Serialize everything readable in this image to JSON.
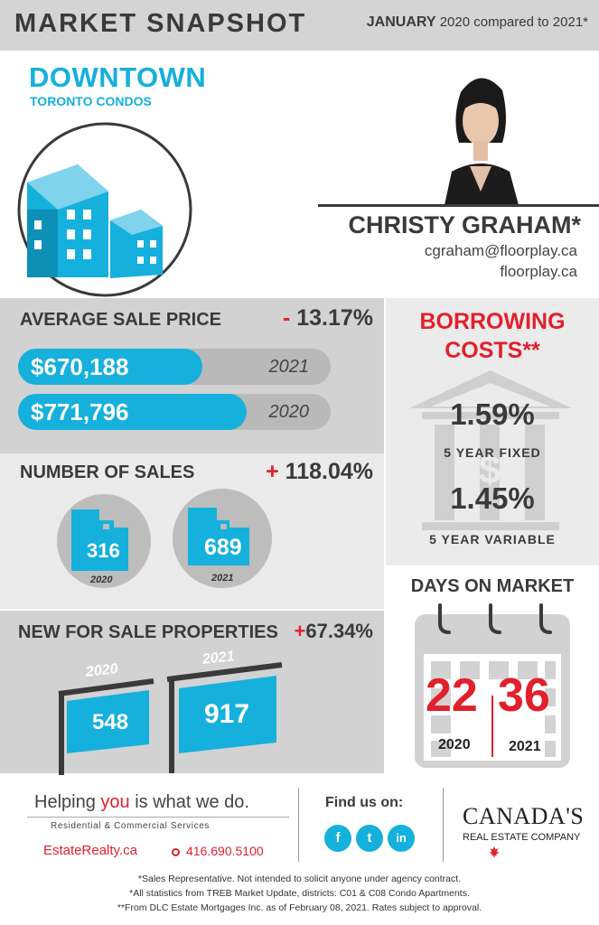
{
  "header": {
    "title": "MARKET SNAPSHOT",
    "month": "JANUARY",
    "comparison": "2020 compared to 2021*"
  },
  "location": {
    "city": "DOWNTOWN",
    "subtitle": "TORONTO CONDOS",
    "icon": "building-icon"
  },
  "agent": {
    "name": "CHRISTY GRAHAM*",
    "email": "cgraham@floorplay.ca",
    "website": "floorplay.ca"
  },
  "avg_sale_price": {
    "title": "AVERAGE SALE PRICE",
    "change_sign": "-",
    "change_value": "13.17%",
    "rows": [
      {
        "value": "$670,188",
        "year": "2021",
        "fill": 0.59
      },
      {
        "value": "$771,796",
        "year": "2020",
        "fill": 0.73
      }
    ]
  },
  "number_of_sales": {
    "title": "NUMBER OF SALES",
    "change_sign": "+",
    "change_value": "118.04%",
    "items": [
      {
        "value": "316",
        "year": "2020"
      },
      {
        "value": "689",
        "year": "2021"
      }
    ]
  },
  "new_for_sale": {
    "title": "NEW FOR SALE PROPERTIES",
    "change_sign": "+",
    "change_value": "67.34%",
    "items": [
      {
        "value": "548",
        "year": "2020"
      },
      {
        "value": "917",
        "year": "2021"
      }
    ]
  },
  "borrowing": {
    "title_line1": "BORROWING",
    "title_line2": "COSTS**",
    "rate_fixed": "1.59%",
    "label_fixed": "5 YEAR FIXED",
    "rate_variable": "1.45%",
    "label_variable": "5 YEAR VARIABLE",
    "icon": "bank-icon"
  },
  "days_on_market": {
    "title": "DAYS ON MARKET",
    "items": [
      {
        "value": "22",
        "year": "2020"
      },
      {
        "value": "36",
        "year": "2021"
      }
    ],
    "icon": "calendar-icon"
  },
  "footer": {
    "slogan_pre": "Helping ",
    "slogan_you": "you",
    "slogan_post": " is what we do.",
    "services": "Residential & Commercial Services",
    "site": "EstateRealty.ca",
    "phone": "416.690.5100",
    "find_us": "Find us on:",
    "social": [
      {
        "label": "f",
        "icon": "facebook-icon"
      },
      {
        "label": "t",
        "icon": "twitter-icon"
      },
      {
        "label": "in",
        "icon": "linkedin-icon"
      }
    ],
    "brand_name": "CANADA'S",
    "brand_tagline": "REAL ESTATE COMPANY",
    "notes": [
      "*Sales Representative. Not intended to solicit anyone under agency contract.",
      "*All statistics from TREB Market Update, districts: C01 & C08 Condo Apartments.",
      "**From DLC Estate Mortgages Inc. as of February 08, 2021. Rates subject to approval."
    ]
  },
  "colors": {
    "accent": "#16b0dc",
    "highlight": "#e2202c",
    "panel_dark": "#d2d2d2",
    "panel_light": "#ebebeb",
    "text": "#3a3a3a"
  }
}
